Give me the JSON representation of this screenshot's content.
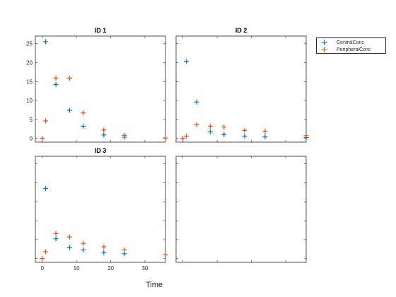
{
  "chart_data": {
    "type": "scatter",
    "xlabel": "Time",
    "legend": {
      "placement": "top-right",
      "entries": [
        {
          "name": "CentralConc",
          "color": "#0072BD"
        },
        {
          "name": "PeripheralConc",
          "color": "#D95319"
        }
      ]
    },
    "xlim": [
      -2,
      36
    ],
    "x_ticks": [
      0,
      10,
      20,
      30
    ],
    "panels": [
      {
        "title": "ID 1",
        "ylim": [
          -1,
          27
        ],
        "y_ticks": [
          0,
          5,
          10,
          15,
          20,
          25
        ],
        "series": [
          {
            "name": "CentralConc",
            "x": [
              1,
              4,
              8,
              12,
              18,
              24
            ],
            "y": [
              25.5,
              14.2,
              7.4,
              3.2,
              0.9,
              0.3
            ]
          },
          {
            "name": "PeripheralConc",
            "x": [
              0,
              1,
              4,
              8,
              12,
              18,
              24,
              36
            ],
            "y": [
              0,
              4.6,
              15.9,
              15.9,
              6.7,
              2.2,
              0.8,
              0.1
            ]
          }
        ]
      },
      {
        "title": "ID 2",
        "ylim": [
          -1,
          27
        ],
        "y_ticks": [
          0,
          5,
          10,
          15,
          20,
          25
        ],
        "series": [
          {
            "name": "CentralConc",
            "x": [
              1,
              4,
              8,
              12,
              18,
              24,
              36
            ],
            "y": [
              20.3,
              9.6,
              1.7,
              1.0,
              0.6,
              0.4,
              0.2
            ]
          },
          {
            "name": "PeripheralConc",
            "x": [
              0,
              1,
              4,
              8,
              12,
              18,
              24,
              36
            ],
            "y": [
              0,
              0.6,
              3.6,
              3.2,
              3.0,
              2.1,
              1.9,
              0.7
            ]
          }
        ]
      },
      {
        "title": "ID 3",
        "ylim": [
          -1,
          27
        ],
        "y_ticks": [
          0,
          5,
          10,
          15,
          20,
          25
        ],
        "series": [
          {
            "name": "CentralConc",
            "x": [
              1,
              4,
              8,
              12,
              18,
              24
            ],
            "y": [
              18.5,
              5.2,
              2.9,
              2.3,
              1.6,
              1.3
            ]
          },
          {
            "name": "PeripheralConc",
            "x": [
              0,
              1,
              4,
              8,
              12,
              18,
              24,
              36
            ],
            "y": [
              0,
              1.8,
              6.6,
              5.7,
              4.0,
              3.1,
              2.3,
              1.0
            ]
          }
        ]
      },
      {
        "title": "",
        "ylim": [
          -1,
          27
        ],
        "y_ticks": [
          0,
          5,
          10,
          15,
          20,
          25
        ],
        "series": []
      }
    ]
  }
}
